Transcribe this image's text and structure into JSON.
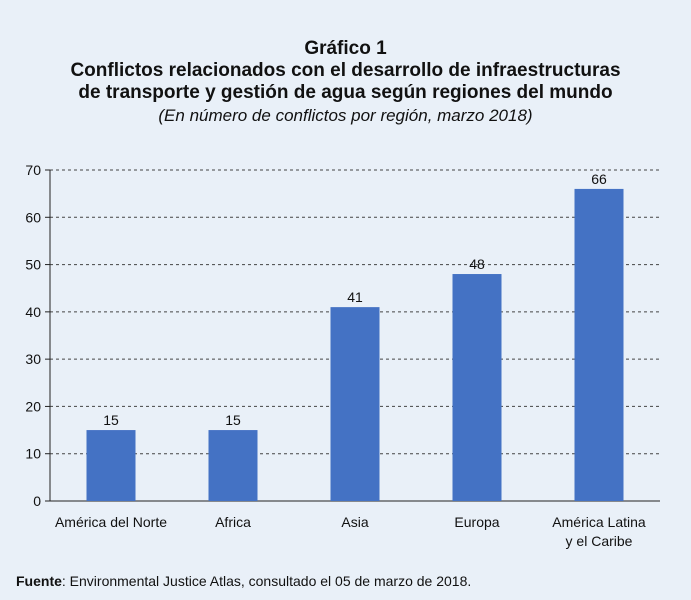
{
  "header": {
    "figure_label": "Gráfico 1",
    "title_line1": "Conflictos relacionados con el desarrollo de infraestructuras",
    "title_line2": "de transporte y gestión de agua según regiones del mundo",
    "subtitle": "(En número de conflictos por región, marzo 2018)"
  },
  "chart_data": {
    "type": "bar",
    "title": "Conflictos relacionados con el desarrollo de infraestructuras de transporte y gestión de agua según regiones del mundo",
    "subtitle": "(En número de conflictos por región, marzo 2018)",
    "categories": [
      [
        "América del Norte"
      ],
      [
        "Africa"
      ],
      [
        "Asia"
      ],
      [
        "Europa"
      ],
      [
        "América Latina",
        "y el Caribe"
      ]
    ],
    "values": [
      15,
      15,
      41,
      48,
      66
    ],
    "data_labels": [
      "15",
      "15",
      "41",
      "48",
      "66"
    ],
    "yticks": [
      "0",
      "10",
      "20",
      "30",
      "40",
      "50",
      "60",
      "70"
    ],
    "ylim": [
      0,
      70
    ],
    "xlabel": "",
    "ylabel": "",
    "grid": "dashed horizontal",
    "bar_color": "#4472c4"
  },
  "footer": {
    "source_label": "Fuente",
    "source_text": ":  Environmental Justice Atlas, consultado el 05 de marzo de 2018."
  }
}
